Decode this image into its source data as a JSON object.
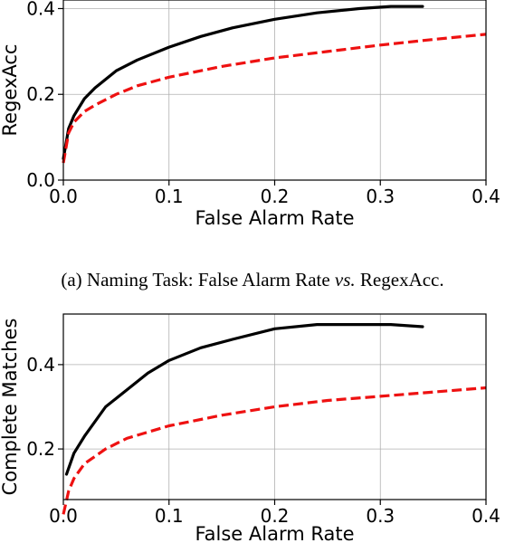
{
  "figure": {
    "caption_a_prefix": "(a) Naming Task: False Alarm Rate ",
    "caption_a_vs": "vs.",
    "caption_a_suffix": " RegexAcc."
  },
  "chart_data": [
    {
      "type": "line",
      "xlabel": "False Alarm Rate",
      "ylabel": "RegexAcc",
      "xlim": [
        0.0,
        0.4
      ],
      "ylim": [
        0.0,
        0.42
      ],
      "xticks": [
        "0.0",
        "0.1",
        "0.2",
        "0.3",
        "0.4"
      ],
      "xtick_values": [
        0.0,
        0.1,
        0.2,
        0.3,
        0.4
      ],
      "yticks": [
        "0.0",
        "0.2",
        "0.4"
      ],
      "ytick_values": [
        0.0,
        0.2,
        0.4
      ],
      "grid": true,
      "series": [
        {
          "color": "#000000",
          "style": "solid",
          "x": [
            0.0,
            0.005,
            0.01,
            0.02,
            0.03,
            0.05,
            0.07,
            0.1,
            0.13,
            0.16,
            0.2,
            0.24,
            0.28,
            0.31,
            0.33,
            0.34
          ],
          "y": [
            0.05,
            0.12,
            0.15,
            0.19,
            0.215,
            0.255,
            0.28,
            0.31,
            0.335,
            0.355,
            0.375,
            0.39,
            0.4,
            0.405,
            0.405,
            0.405
          ]
        },
        {
          "color": "#ee1111",
          "style": "dashed",
          "x": [
            0.0,
            0.005,
            0.01,
            0.02,
            0.03,
            0.05,
            0.07,
            0.1,
            0.15,
            0.2,
            0.25,
            0.3,
            0.35,
            0.4
          ],
          "y": [
            0.04,
            0.11,
            0.135,
            0.16,
            0.175,
            0.2,
            0.22,
            0.24,
            0.265,
            0.285,
            0.3,
            0.315,
            0.328,
            0.34
          ]
        }
      ]
    },
    {
      "type": "line",
      "xlabel": "False Alarm Rate",
      "ylabel": "Complete Matches",
      "xlim": [
        0.0,
        0.4
      ],
      "ylim": [
        0.08,
        0.52
      ],
      "xticks": [
        "0.0",
        "0.1",
        "0.2",
        "0.3",
        "0.4"
      ],
      "xtick_values": [
        0.0,
        0.1,
        0.2,
        0.3,
        0.4
      ],
      "yticks": [
        "0.2",
        "0.4"
      ],
      "ytick_values": [
        0.2,
        0.4
      ],
      "grid": true,
      "series": [
        {
          "color": "#000000",
          "style": "solid",
          "x": [
            0.003,
            0.01,
            0.02,
            0.04,
            0.06,
            0.08,
            0.1,
            0.13,
            0.16,
            0.2,
            0.24,
            0.28,
            0.31,
            0.34
          ],
          "y": [
            0.14,
            0.19,
            0.23,
            0.3,
            0.34,
            0.38,
            0.41,
            0.44,
            0.46,
            0.485,
            0.495,
            0.495,
            0.495,
            0.49
          ]
        },
        {
          "color": "#ee1111",
          "style": "dashed",
          "x": [
            0.0,
            0.005,
            0.01,
            0.02,
            0.04,
            0.06,
            0.1,
            0.15,
            0.2,
            0.25,
            0.3,
            0.35,
            0.4
          ],
          "y": [
            0.045,
            0.1,
            0.13,
            0.165,
            0.2,
            0.225,
            0.255,
            0.28,
            0.3,
            0.315,
            0.325,
            0.335,
            0.345
          ]
        }
      ]
    }
  ]
}
